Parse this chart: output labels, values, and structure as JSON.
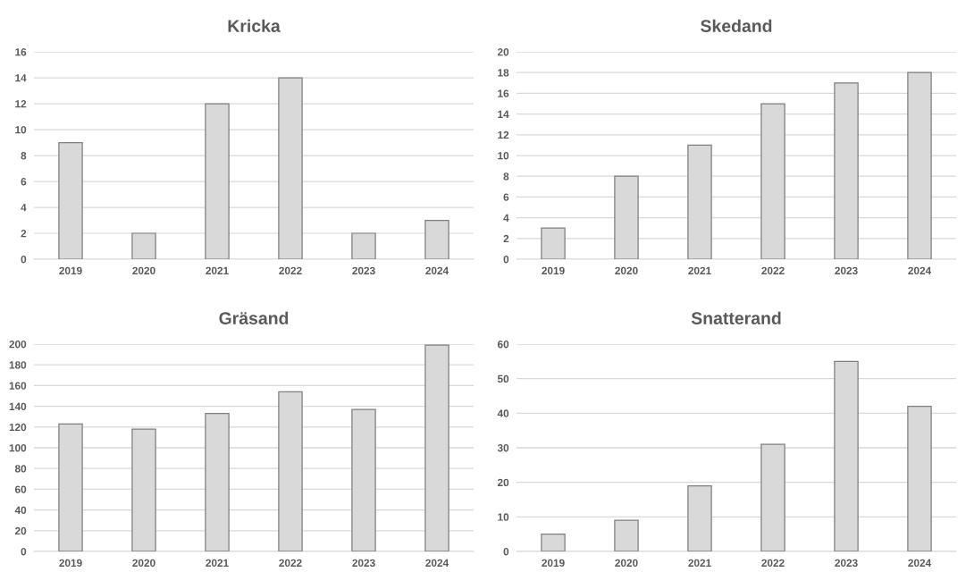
{
  "chart_data": [
    {
      "type": "bar",
      "title": "Kricka",
      "categories": [
        "2019",
        "2020",
        "2021",
        "2022",
        "2023",
        "2024"
      ],
      "values": [
        9,
        2,
        12,
        14,
        2,
        3
      ],
      "color": "#d9d9d9",
      "ylim": [
        0,
        16
      ],
      "yticks": [
        0,
        2,
        4,
        6,
        8,
        10,
        12,
        14,
        16
      ],
      "grid": "y"
    },
    {
      "type": "bar",
      "title": "Skedand",
      "categories": [
        "2019",
        "2020",
        "2021",
        "2022",
        "2023",
        "2024"
      ],
      "values": [
        3,
        8,
        11,
        15,
        17,
        18
      ],
      "color": "#d9d9d9",
      "ylim": [
        0,
        20
      ],
      "yticks": [
        0,
        2,
        4,
        6,
        8,
        10,
        12,
        14,
        16,
        18,
        20
      ],
      "grid": "y"
    },
    {
      "type": "bar",
      "title": "Gräsand",
      "categories": [
        "2019",
        "2020",
        "2021",
        "2022",
        "2023",
        "2024"
      ],
      "values": [
        123,
        118,
        133,
        154,
        137,
        199
      ],
      "color": "#d9d9d9",
      "ylim": [
        0,
        200
      ],
      "yticks": [
        0,
        20,
        40,
        60,
        80,
        100,
        120,
        140,
        160,
        180,
        200
      ],
      "grid": "y"
    },
    {
      "type": "bar",
      "title": "Snatterand",
      "categories": [
        "2019",
        "2020",
        "2021",
        "2022",
        "2023",
        "2024"
      ],
      "values": [
        5,
        9,
        19,
        31,
        55,
        42
      ],
      "color": "#d9d9d9",
      "ylim": [
        0,
        60
      ],
      "yticks": [
        0,
        10,
        20,
        30,
        40,
        50,
        60
      ],
      "grid": "y"
    }
  ]
}
